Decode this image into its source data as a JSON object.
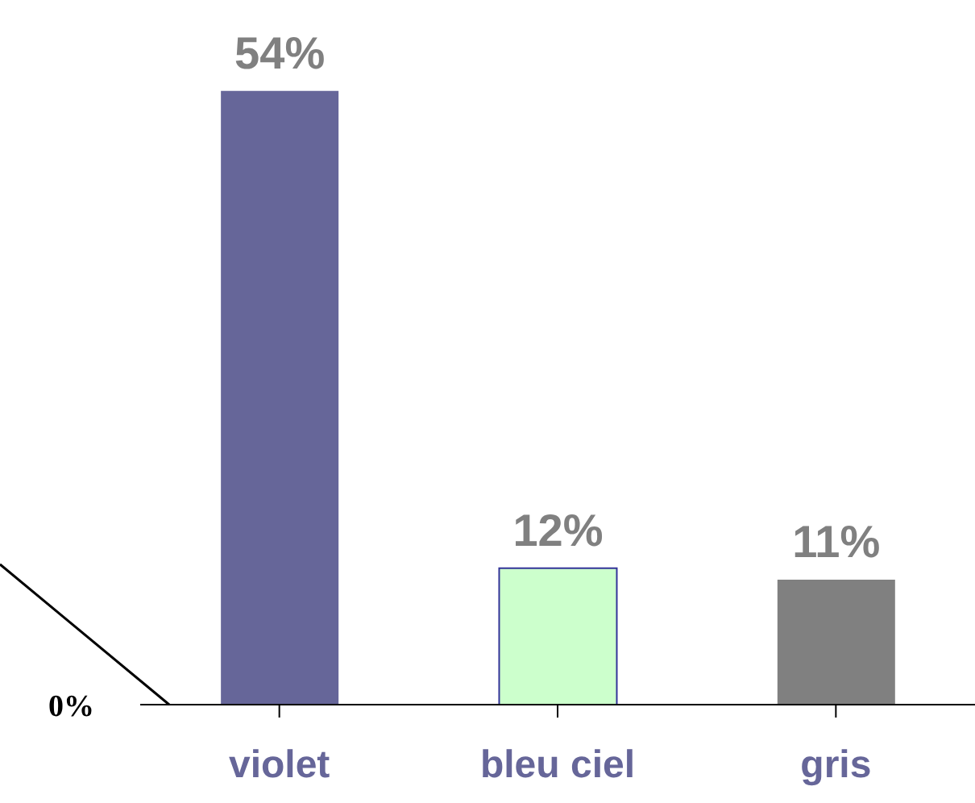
{
  "chart_data": {
    "type": "bar",
    "categories": [
      "violet",
      "bleu ciel",
      "gris"
    ],
    "values": [
      54,
      12,
      11
    ],
    "colors": [
      "#666699",
      "#ccffcc",
      "#808080"
    ],
    "value_labels": [
      "54%",
      "12%",
      "11%"
    ],
    "ylim": [
      0,
      62
    ],
    "annotations": [
      "0%"
    ],
    "grid": false
  }
}
